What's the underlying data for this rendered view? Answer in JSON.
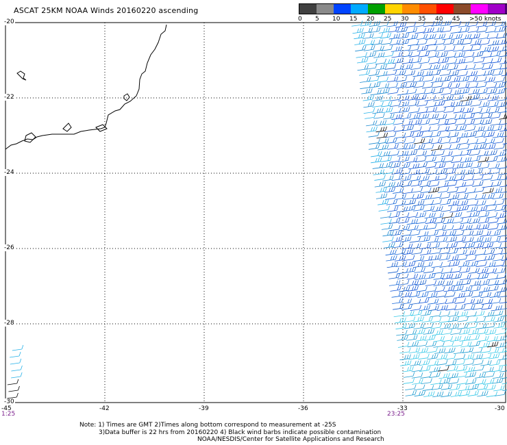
{
  "title": "ASCAT 25KM NOAA Winds 20160220 ascending",
  "legend": {
    "colors": [
      "#404040",
      "#8a8a8a",
      "#0044ff",
      "#00aaff",
      "#00a000",
      "#ffd400",
      "#ff8c00",
      "#ff5000",
      "#ff0000",
      "#8b4a2a",
      "#ff00ff",
      "#a000c8",
      "#500078"
    ],
    "labels": [
      "0",
      "5",
      "10",
      "15",
      "20",
      "25",
      "30",
      "35",
      "40",
      "45",
      ">50 knots"
    ]
  },
  "axes": {
    "lat_labels": [
      "-20",
      "-22",
      "-24",
      "-26",
      "-28",
      "-30"
    ],
    "lon_labels": [
      "-45",
      "-42",
      "-39",
      "-36",
      "-33",
      "-30"
    ]
  },
  "times": {
    "left": "1:25",
    "right": "23:25"
  },
  "notes": [
    "Note: 1) Times are GMT 2)Times along bottom correspond to measurement at -25S",
    "3)Data buffer is 22 hrs from 20160220 4) Black wind barbs indicate possible contamination",
    "NOAA/NESDIS/Center for Satellite Applications and Research"
  ]
}
